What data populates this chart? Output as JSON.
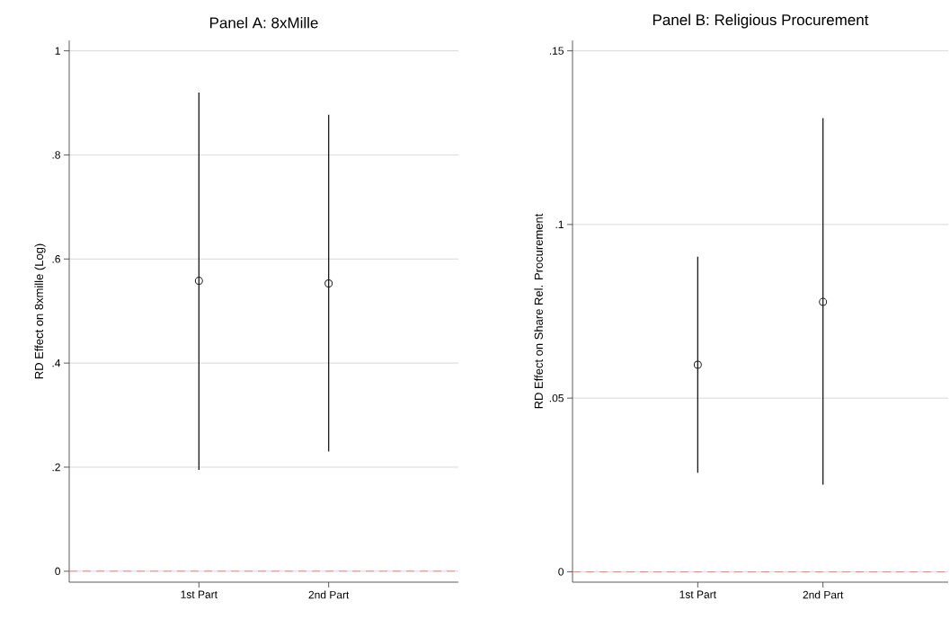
{
  "chart_data": [
    {
      "type": "scatter",
      "title": "Panel A: 8xMille",
      "ylabel": "RD Effect on 8xmille (Log)",
      "categories": [
        "1st Part",
        "2nd Part"
      ],
      "series": [
        {
          "color": "#1a1a1a",
          "values": [
            0.558,
            0.553
          ],
          "errors": [
            [
              0.195,
              0.92
            ],
            [
              0.23,
              0.877
            ]
          ]
        }
      ],
      "ylim": [
        -0.021,
        1.02
      ],
      "yticks": [
        {
          "value": 0,
          "label": "0"
        },
        {
          "value": 0.2,
          "label": ".2"
        },
        {
          "value": 0.4,
          "label": ".4"
        },
        {
          "value": 0.6,
          "label": ".6"
        },
        {
          "value": 0.8,
          "label": ".8"
        },
        {
          "value": 1,
          "label": "1"
        }
      ],
      "grid": "y",
      "marker": "circle",
      "ref_lines": [
        {
          "axis": "y",
          "value": 0,
          "color": "#ff8080",
          "line_style": "dashed"
        }
      ]
    },
    {
      "type": "scatter",
      "title": "Panel B: Religious Procurement",
      "ylabel": "RD Effect on Share Rel. Procurement",
      "categories": [
        "1st Part",
        "2nd Part"
      ],
      "series": [
        {
          "color": "#1a1a1a",
          "values": [
            0.0596,
            0.0777
          ],
          "errors": [
            [
              0.0285,
              0.0907
            ],
            [
              0.0251,
              0.1306
            ]
          ]
        }
      ],
      "ylim": [
        -0.003,
        0.153
      ],
      "yticks": [
        {
          "value": 0,
          "label": "0"
        },
        {
          "value": 0.05,
          "label": ".05"
        },
        {
          "value": 0.1,
          "label": ".1"
        },
        {
          "value": 0.15,
          "label": ".15"
        }
      ],
      "grid": "y",
      "marker": "circle",
      "ref_lines": [
        {
          "axis": "y",
          "value": 0,
          "color": "#ff8080",
          "line_style": "dashed"
        }
      ]
    }
  ]
}
